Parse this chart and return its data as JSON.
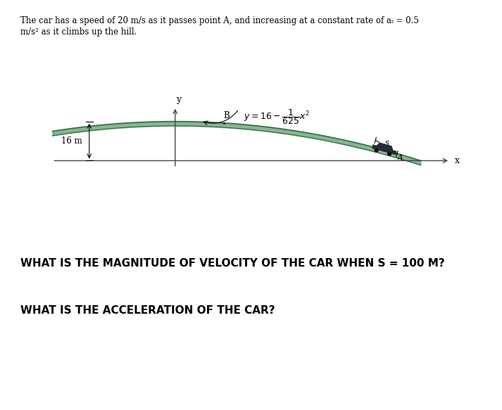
{
  "bg_color": "#ffffff",
  "description_line1": "The car has a speed of 20 m/s as it passes point A, and increasing at a constant rate of aₜ = 0.5",
  "description_line2": "m/s² as it climbs up the hill.",
  "point_B_label": "B",
  "point_A_label": "A",
  "dim_label": "16 m",
  "s_label": "s",
  "x_axis_label": "x",
  "y_axis_label": "y",
  "question1": "WHAT IS THE MAGNITUDE OF VELOCITY OF THE CAR WHEN S = 100 M?",
  "question2": "WHAT IS THE ACCELERATION OF THE CAR?",
  "hill_fill_color": "#5c9e6e",
  "hill_fill_alpha": 0.75,
  "hill_top_color": "#3d6b4a",
  "hill_bottom_color": "#3d6b4a",
  "axis_color": "#444444",
  "car_color": "#2a2a2a",
  "text_color": "#222222"
}
